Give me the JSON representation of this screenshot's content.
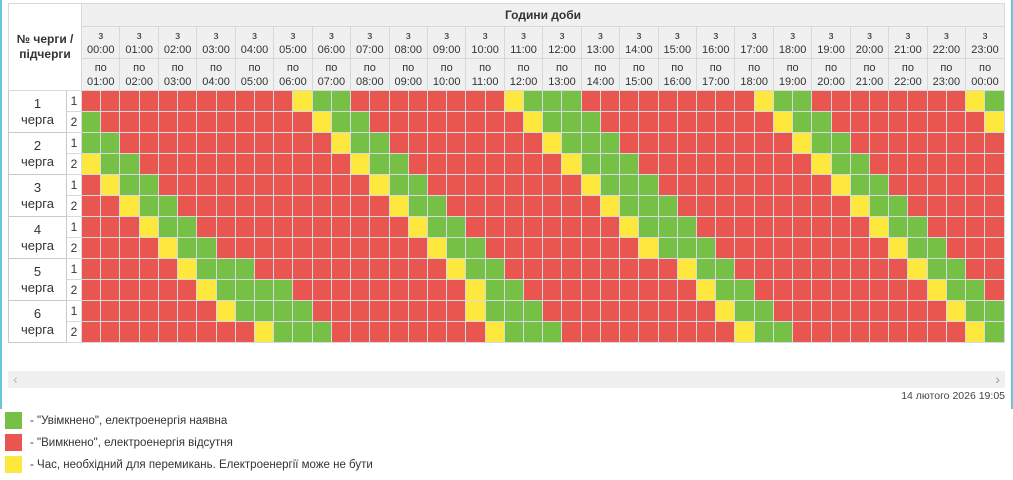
{
  "header": {
    "title": "Години доби",
    "corner_lines": [
      "№ черги /",
      "підчерги"
    ],
    "hours": [
      {
        "from": "з 00:00",
        "to": "по 01:00"
      },
      {
        "from": "з 01:00",
        "to": "по 02:00"
      },
      {
        "from": "з 02:00",
        "to": "по 03:00"
      },
      {
        "from": "з 03:00",
        "to": "по 04:00"
      },
      {
        "from": "з 04:00",
        "to": "по 05:00"
      },
      {
        "from": "з 05:00",
        "to": "по 06:00"
      },
      {
        "from": "з 06:00",
        "to": "по 07:00"
      },
      {
        "from": "з 07:00",
        "to": "по 08:00"
      },
      {
        "from": "з 08:00",
        "to": "по 09:00"
      },
      {
        "from": "з 09:00",
        "to": "по 10:00"
      },
      {
        "from": "з 10:00",
        "to": "по 11:00"
      },
      {
        "from": "з 11:00",
        "to": "по 12:00"
      },
      {
        "from": "з 12:00",
        "to": "по 13:00"
      },
      {
        "from": "з 13:00",
        "to": "по 14:00"
      },
      {
        "from": "з 14:00",
        "to": "по 15:00"
      },
      {
        "from": "з 15:00",
        "to": "по 16:00"
      },
      {
        "from": "з 16:00",
        "to": "по 17:00"
      },
      {
        "from": "з 17:00",
        "to": "по 18:00"
      },
      {
        "from": "з 18:00",
        "to": "по 19:00"
      },
      {
        "from": "з 19:00",
        "to": "по 20:00"
      },
      {
        "from": "з 20:00",
        "to": "по 21:00"
      },
      {
        "from": "з 21:00",
        "to": "по 22:00"
      },
      {
        "from": "з 22:00",
        "to": "по 23:00"
      },
      {
        "from": "з 23:00",
        "to": "по 00:00"
      }
    ]
  },
  "colors": {
    "on": "#76c045",
    "off": "#e9554f",
    "switch": "#ffe83d"
  },
  "queues": [
    {
      "num": "1",
      "word": "черга",
      "subqueues": [
        {
          "label": "1",
          "cells": "RRRRRRRRRRRYGGRRRRRRRRYGGGRRRRRRRRRYGGRRRRRRRRYG"
        },
        {
          "label": "2",
          "cells": "GRRRRRRRRRRRYGGRRRRRRRRYGGGRRRRRRRRRYGGRRRRRRRRY"
        }
      ]
    },
    {
      "num": "2",
      "word": "черга",
      "subqueues": [
        {
          "label": "1",
          "cells": "GGRRRRRRRRRRRYGGRRRRRRRRYGGGRRRRRRRRRYGGRRRRRRRR"
        },
        {
          "label": "2",
          "cells": "YGGRRRRRRRRRRRYGGRRRRRRRRYGGGRRRRRRRRRYGGRRRRRRR"
        }
      ]
    },
    {
      "num": "3",
      "word": "черга",
      "subqueues": [
        {
          "label": "1",
          "cells": "RYGGRRRRRRRRRRRYGGRRRRRRRRYGGGRRRRRRRRRYGGRRRRRR"
        },
        {
          "label": "2",
          "cells": "RRYGGRRRRRRRRRRRYGGRRRRRRRRYGGGRRRRRRRRRYGGRRRRR"
        }
      ]
    },
    {
      "num": "4",
      "word": "черга",
      "subqueues": [
        {
          "label": "1",
          "cells": "RRRYGGRRRRRRRRRRRYGGRRRRRRRRYGGGRRRRRRRRRYGGRRRR"
        },
        {
          "label": "2",
          "cells": "RRRRYGGRRRRRRRRRRRYGGRRRRRRRRYGGGRRRRRRRRRYGGRRR"
        }
      ]
    },
    {
      "num": "5",
      "word": "черга",
      "subqueues": [
        {
          "label": "1",
          "cells": "RRRRRYGGGRRRRRRRRRRYGGRRRRRRRRRYGGRRRRRRRRRYGGRR"
        },
        {
          "label": "2",
          "cells": "RRRRRRYGGGGRRRRRRRRRYGGRRRRRRRRRYGGRRRRRRRRRYGGR"
        }
      ]
    },
    {
      "num": "6",
      "word": "черга",
      "subqueues": [
        {
          "label": "1",
          "cells": "RRRRRRRYGGGGRRRRRRRRYGGGRRRRRRRRRYGGRRRRRRRRRYGG"
        },
        {
          "label": "2",
          "cells": "RRRRRRRRRYGGGRRRRRRRRYGGGRRRRRRRRRYGGRRRRRRRRRYG"
        }
      ]
    }
  ],
  "scrollbar": {
    "left": "‹",
    "right": "›"
  },
  "footer": {
    "timestamp": "14 лютого 2026 19:05"
  },
  "legend": {
    "items": [
      {
        "state": "on",
        "text": "- \"Увімкнено\", електроенергія наявна"
      },
      {
        "state": "off",
        "text": "- \"Вимкнено\", електроенергія відсутня"
      },
      {
        "state": "switch",
        "text": "- Час, необхідний для перемикань. Електроенергії може не бути"
      }
    ]
  }
}
